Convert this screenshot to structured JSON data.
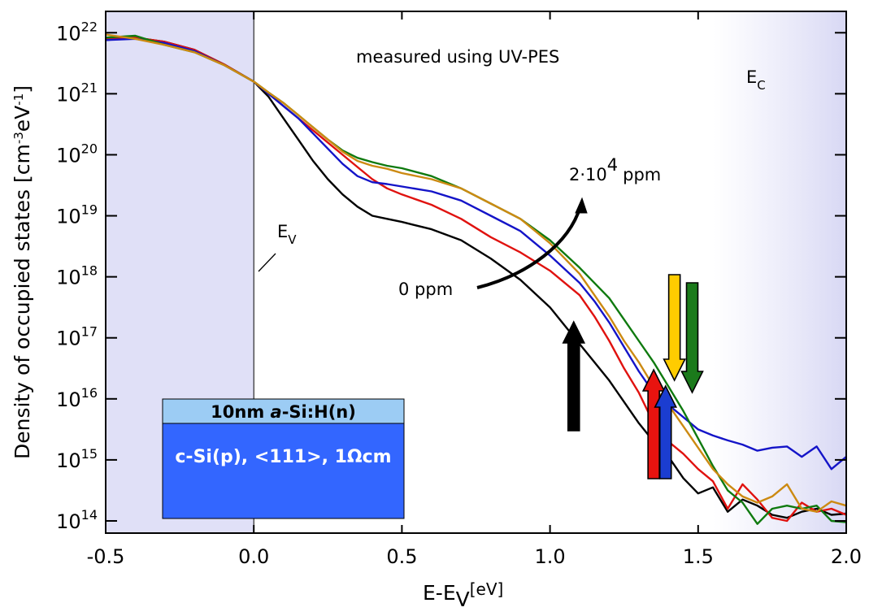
{
  "chart_data": {
    "type": "line",
    "xlabel": "E-E",
    "xlabel_sub": "V",
    "xlabel_unit": "[eV]",
    "ylabel": "Density of occupied states [cm",
    "ylabel_exp": "-3",
    "ylabel_mid": "eV",
    "ylabel_exp2": "-1",
    "ylabel_end": "]",
    "xlim": [
      -0.5,
      2.0
    ],
    "ylim_log10": [
      13.8,
      22.35
    ],
    "y_scale": "log",
    "x_ticks": [
      {
        "value": -0.5,
        "label": "-0.5"
      },
      {
        "value": 0.0,
        "label": "0.0"
      },
      {
        "value": 0.5,
        "label": "0.5"
      },
      {
        "value": 1.0,
        "label": "1.0"
      },
      {
        "value": 1.5,
        "label": "1.5"
      },
      {
        "value": 2.0,
        "label": "2.0"
      }
    ],
    "y_ticks": [
      {
        "exp": 14,
        "base": "10",
        "sup": "14"
      },
      {
        "exp": 15,
        "base": "10",
        "sup": "15"
      },
      {
        "exp": 16,
        "base": "10",
        "sup": "16"
      },
      {
        "exp": 17,
        "base": "10",
        "sup": "17"
      },
      {
        "exp": 18,
        "base": "10",
        "sup": "18"
      },
      {
        "exp": 19,
        "base": "10",
        "sup": "19"
      },
      {
        "exp": 20,
        "base": "10",
        "sup": "20"
      },
      {
        "exp": 21,
        "base": "10",
        "sup": "21"
      },
      {
        "exp": 22,
        "base": "10",
        "sup": "22"
      }
    ],
    "shaded_regions": [
      {
        "from": -0.5,
        "to": 0.0,
        "style": "solid",
        "color": "#e0e0f7"
      },
      {
        "from": 1.55,
        "to": 2.0,
        "style": "gradient",
        "color": "#e0e0f7"
      }
    ],
    "series": [
      {
        "color": "#000000",
        "x": [
          -0.5,
          -0.4,
          -0.3,
          -0.2,
          -0.1,
          0.0,
          0.05,
          0.1,
          0.15,
          0.2,
          0.25,
          0.3,
          0.35,
          0.4,
          0.45,
          0.5,
          0.6,
          0.7,
          0.8,
          0.9,
          1.0,
          1.05,
          1.1,
          1.15,
          1.2,
          1.25,
          1.3,
          1.35,
          1.4,
          1.45,
          1.5,
          1.55,
          1.6,
          1.65,
          1.7,
          1.75,
          1.8,
          1.85,
          1.9,
          1.95,
          2.0
        ],
        "y": [
          21.88,
          21.92,
          21.85,
          21.72,
          21.48,
          21.2,
          20.95,
          20.6,
          20.25,
          19.9,
          19.6,
          19.35,
          19.15,
          19.0,
          18.95,
          18.9,
          18.78,
          18.6,
          18.3,
          17.95,
          17.5,
          17.2,
          16.9,
          16.6,
          16.3,
          15.95,
          15.6,
          15.3,
          15.05,
          14.7,
          14.45,
          14.55,
          14.15,
          14.35,
          14.25,
          14.1,
          14.05,
          14.15,
          14.2,
          14.1,
          14.12
        ]
      },
      {
        "color": "#e0120f",
        "x": [
          -0.5,
          -0.4,
          -0.3,
          -0.2,
          -0.1,
          0.0,
          0.05,
          0.1,
          0.15,
          0.2,
          0.25,
          0.3,
          0.35,
          0.4,
          0.45,
          0.5,
          0.6,
          0.7,
          0.8,
          0.9,
          1.0,
          1.1,
          1.15,
          1.2,
          1.25,
          1.3,
          1.35,
          1.4,
          1.45,
          1.5,
          1.55,
          1.6,
          1.65,
          1.7,
          1.75,
          1.8,
          1.85,
          1.9,
          1.95,
          2.0
        ],
        "y": [
          21.9,
          21.92,
          21.85,
          21.72,
          21.48,
          21.2,
          21.0,
          20.8,
          20.6,
          20.4,
          20.2,
          20.0,
          19.8,
          19.6,
          19.45,
          19.35,
          19.18,
          18.95,
          18.65,
          18.4,
          18.1,
          17.7,
          17.35,
          16.95,
          16.5,
          16.1,
          15.6,
          15.3,
          15.1,
          14.85,
          14.65,
          14.2,
          14.6,
          14.35,
          14.05,
          14.0,
          14.3,
          14.15,
          14.2,
          14.1
        ]
      },
      {
        "color": "#1414c8",
        "x": [
          -0.5,
          -0.4,
          -0.3,
          -0.2,
          -0.1,
          0.0,
          0.05,
          0.1,
          0.15,
          0.2,
          0.25,
          0.3,
          0.35,
          0.4,
          0.45,
          0.5,
          0.6,
          0.7,
          0.8,
          0.9,
          1.0,
          1.1,
          1.15,
          1.2,
          1.25,
          1.3,
          1.35,
          1.4,
          1.45,
          1.5,
          1.55,
          1.6,
          1.65,
          1.7,
          1.75,
          1.8,
          1.85,
          1.9,
          1.95,
          2.0
        ],
        "y": [
          21.88,
          21.9,
          21.83,
          21.7,
          21.47,
          21.2,
          21.0,
          20.8,
          20.6,
          20.35,
          20.1,
          19.85,
          19.65,
          19.55,
          19.52,
          19.48,
          19.4,
          19.25,
          19.0,
          18.75,
          18.35,
          17.9,
          17.6,
          17.25,
          16.85,
          16.45,
          16.1,
          15.9,
          15.7,
          15.5,
          15.4,
          15.32,
          15.25,
          15.15,
          15.2,
          15.22,
          15.05,
          15.22,
          14.85,
          15.05
        ]
      },
      {
        "color": "#0f7a0f",
        "x": [
          -0.5,
          -0.4,
          -0.3,
          -0.2,
          -0.1,
          0.0,
          0.05,
          0.1,
          0.15,
          0.2,
          0.25,
          0.3,
          0.35,
          0.4,
          0.45,
          0.5,
          0.6,
          0.7,
          0.8,
          0.9,
          1.0,
          1.1,
          1.2,
          1.25,
          1.3,
          1.35,
          1.4,
          1.45,
          1.5,
          1.55,
          1.6,
          1.65,
          1.7,
          1.75,
          1.8,
          1.85,
          1.9,
          1.95,
          2.0
        ],
        "y": [
          21.92,
          21.95,
          21.8,
          21.68,
          21.47,
          21.2,
          21.02,
          20.85,
          20.65,
          20.45,
          20.25,
          20.07,
          19.95,
          19.88,
          19.82,
          19.78,
          19.65,
          19.45,
          19.2,
          18.95,
          18.6,
          18.15,
          17.65,
          17.3,
          16.95,
          16.6,
          16.2,
          15.8,
          15.35,
          14.9,
          14.5,
          14.3,
          13.95,
          14.2,
          14.25,
          14.2,
          14.25,
          14.0,
          13.98
        ]
      },
      {
        "color": "#cc8a12",
        "x": [
          -0.5,
          -0.4,
          -0.3,
          -0.2,
          -0.1,
          0.0,
          0.05,
          0.1,
          0.15,
          0.2,
          0.25,
          0.3,
          0.35,
          0.4,
          0.45,
          0.5,
          0.6,
          0.7,
          0.8,
          0.9,
          1.0,
          1.1,
          1.15,
          1.2,
          1.25,
          1.3,
          1.35,
          1.4,
          1.45,
          1.5,
          1.55,
          1.6,
          1.65,
          1.7,
          1.75,
          1.8,
          1.85,
          1.9,
          1.95,
          2.0
        ],
        "y": [
          21.97,
          21.9,
          21.8,
          21.68,
          21.47,
          21.2,
          21.02,
          20.85,
          20.65,
          20.45,
          20.25,
          20.05,
          19.9,
          19.82,
          19.77,
          19.7,
          19.6,
          19.45,
          19.2,
          18.95,
          18.55,
          18.05,
          17.7,
          17.35,
          16.95,
          16.6,
          16.2,
          15.9,
          15.55,
          15.2,
          14.85,
          14.6,
          14.4,
          14.3,
          14.4,
          14.6,
          14.2,
          14.15,
          14.32,
          14.25
        ]
      }
    ],
    "annotations": [
      {
        "text": "measured using UV-PES"
      },
      {
        "text": "E",
        "sub": "C"
      },
      {
        "text": "E",
        "sub": "V"
      },
      {
        "text": "0 ppm"
      },
      {
        "text": "2·10",
        "sup": "4",
        "tail": "ppm"
      }
    ],
    "marker_arrows": [
      {
        "x": 1.08,
        "direction": "up",
        "color": "#000000"
      },
      {
        "x": 1.35,
        "direction": "up",
        "color": "#e8130f"
      },
      {
        "x": 1.39,
        "direction": "up",
        "color": "#1b3dd0"
      },
      {
        "x": 1.42,
        "direction": "down",
        "color": "#ffcc00"
      },
      {
        "x": 1.48,
        "direction": "down",
        "color": "#1b7a1b"
      }
    ],
    "inset": {
      "top_layer_prefix": "10nm ",
      "top_layer_italic": "a",
      "top_layer_suffix": "-Si:H(n)",
      "top_layer_color": "#9cccf4",
      "substrate_label": "c-Si(p), <111>, 1Ωcm",
      "substrate_color": "#3366ff"
    },
    "grid": false,
    "legend": "none"
  }
}
